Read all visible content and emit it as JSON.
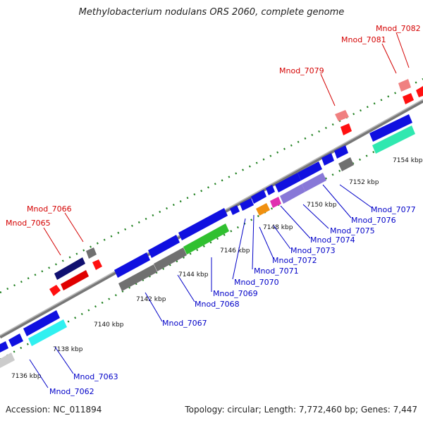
{
  "title": "Methylobacterium nodulans ORS 2060, complete genome",
  "footer": {
    "accession": "Accession: NC_011894",
    "summary": "Topology: circular; Length: 7,772,460 bp; Genes: 7,447"
  },
  "colors": {
    "red": "#d40000",
    "blue": "#0000c8",
    "gene_blue": "#1010e0",
    "gene_dark": "#101070",
    "gene_gray": "#707070",
    "gene_green": "#30c030",
    "gene_cyan": "#30f0f0",
    "gene_purple": "#8878d8",
    "gene_teal": "#30e8b0",
    "gene_orange": "#f09010",
    "gene_magenta": "#e030b0",
    "gene_pink": "#f08080"
  },
  "ticks": [
    "7136 kbp",
    "7138 kbp",
    "7140 kbp",
    "7142 kbp",
    "7144 kbp",
    "7146 kbp",
    "7148 kbp",
    "7150 kbp",
    "7152 kbp",
    "7154 kbp"
  ],
  "labels_red": [
    "Mnod_7065",
    "Mnod_7066",
    "Mnod_7079",
    "Mnod_7081",
    "Mnod_7082"
  ],
  "labels_blue": [
    "Mnod_7062",
    "Mnod_7063",
    "Mnod_7067",
    "Mnod_7068",
    "Mnod_7069",
    "Mnod_7070",
    "Mnod_7071",
    "Mnod_7072",
    "Mnod_7073",
    "Mnod_7074",
    "Mnod_7075",
    "Mnod_7076",
    "Mnod_7077"
  ]
}
